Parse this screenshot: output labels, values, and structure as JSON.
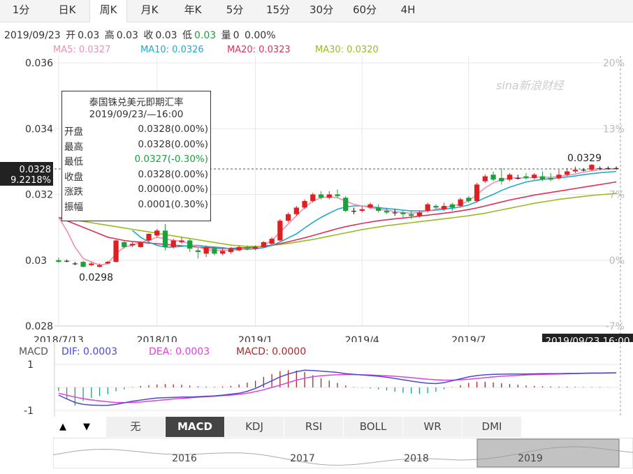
{
  "tabs": [
    "1分",
    "日K",
    "周K",
    "月K",
    "年K",
    "5分",
    "15分",
    "30分",
    "60分",
    "4H"
  ],
  "active_tab": "周K",
  "info": {
    "date": "2019/09/23",
    "open_label": "开",
    "open": "0.03",
    "high_label": "高",
    "high": "0.03",
    "close_label": "收",
    "close": "0.03",
    "low_label": "低",
    "low": "0.03",
    "vol_label": "量",
    "vol": "0",
    "pct": "0.00%"
  },
  "ma": {
    "ma5": "MA5: 0.0327",
    "ma10": "MA10: 0.0326",
    "ma20": "MA20: 0.0323",
    "ma30": "MA30: 0.0320"
  },
  "colors": {
    "up": "#e02020",
    "down": "#1aa33a",
    "ma5": "#f08fb0",
    "ma10": "#20aacc",
    "ma20": "#e0305a",
    "ma30": "#99bb22",
    "dif": "#4a4ad0",
    "dea": "#e040e0",
    "grid": "#e8e8e8"
  },
  "watermark": "sina新浪财经",
  "tooltip": {
    "title": "泰国铢兑美元即期汇率",
    "datetime": "2019/09/23/—16:00",
    "rows": [
      {
        "k": "开盘",
        "v": "0.0328(0.00%)"
      },
      {
        "k": "最高",
        "v": "0.0328(0.00%)"
      },
      {
        "k": "最低",
        "v": "0.0327(-0.30%)"
      },
      {
        "k": "收盘",
        "v": "0.0328(0.00%)"
      },
      {
        "k": "涨跌",
        "v": "0.0000(0.00%)"
      },
      {
        "k": "振幅",
        "v": "0.0001(0.30%)"
      }
    ]
  },
  "cursor": {
    "price": "0.0328",
    "pct": "9.2218%",
    "time": "2019/09/23 16:00"
  },
  "annotations": {
    "max": "0.0329",
    "min": "0.0298"
  },
  "macd_header": {
    "label": "MACD",
    "dif": "DIF: 0.0003",
    "dea": "DEA: 0.0003",
    "macd": "MACD: 0.0000"
  },
  "macd_ticks": [
    "1",
    "-1"
  ],
  "indicator_buttons": [
    "无",
    "MACD",
    "KDJ",
    "RSI",
    "BOLL",
    "WR",
    "DMI"
  ],
  "active_indicator": "MACD",
  "nav_buttons": {
    "up": "▲",
    "down": "▼"
  },
  "overview_years": [
    "2016",
    "2017",
    "2018",
    "2019"
  ],
  "chart_data": {
    "type": "candlestick",
    "ylim": [
      0.028,
      0.036
    ],
    "y_ticks": [
      "0.036",
      "0.034",
      "0.032",
      "0.03",
      "0.028"
    ],
    "pct_ticks": [
      "20%",
      "13%",
      "7%",
      "0%",
      "-7%"
    ],
    "x_tick_labels": [
      "2018/7/13",
      "2018/10",
      "2019/1",
      "2019/4",
      "2019/7"
    ],
    "x_tick_index": [
      0,
      12,
      24,
      37,
      50
    ],
    "candles": [
      [
        0.03,
        0.02995,
        0.03008,
        0.02992
      ],
      [
        0.02998,
        0.02998,
        0.03002,
        0.02994
      ],
      [
        0.0299,
        0.0299,
        0.02995,
        0.02985
      ],
      [
        0.02995,
        0.0298,
        0.02998,
        0.02978
      ],
      [
        0.02985,
        0.0299,
        0.02995,
        0.02982
      ],
      [
        0.0298,
        0.02985,
        0.0299,
        0.02978
      ],
      [
        0.0299,
        0.02995,
        0.02998,
        0.02988
      ],
      [
        0.02995,
        0.0306,
        0.03062,
        0.02993
      ],
      [
        0.03055,
        0.0304,
        0.0306,
        0.03035
      ],
      [
        0.03045,
        0.0305,
        0.03055,
        0.0304
      ],
      [
        0.0304,
        0.03055,
        0.03058,
        0.03038
      ],
      [
        0.0306,
        0.0308,
        0.03082,
        0.03058
      ],
      [
        0.03075,
        0.0309,
        0.03095,
        0.0307
      ],
      [
        0.0309,
        0.0304,
        0.0311,
        0.0303
      ],
      [
        0.0304,
        0.0306,
        0.03065,
        0.03035
      ],
      [
        0.03055,
        0.0306,
        0.0307,
        0.0305
      ],
      [
        0.0306,
        0.03035,
        0.03065,
        0.03025
      ],
      [
        0.0303,
        0.03025,
        0.0304,
        0.03005
      ],
      [
        0.0302,
        0.0304,
        0.03045,
        0.0301
      ],
      [
        0.03035,
        0.0302,
        0.03042,
        0.03015
      ],
      [
        0.0302,
        0.03028,
        0.03035,
        0.03015
      ],
      [
        0.03025,
        0.03035,
        0.0304,
        0.0302
      ],
      [
        0.0303,
        0.0304,
        0.03045,
        0.03028
      ],
      [
        0.0304,
        0.03035,
        0.03045,
        0.0303
      ],
      [
        0.03035,
        0.0304,
        0.03045,
        0.0303
      ],
      [
        0.0304,
        0.03055,
        0.03058,
        0.03038
      ],
      [
        0.0305,
        0.03065,
        0.0307,
        0.03045
      ],
      [
        0.0306,
        0.0312,
        0.03125,
        0.03058
      ],
      [
        0.0312,
        0.0314,
        0.03145,
        0.03115
      ],
      [
        0.0314,
        0.0316,
        0.03165,
        0.03135
      ],
      [
        0.0316,
        0.0318,
        0.03185,
        0.03155
      ],
      [
        0.0318,
        0.032,
        0.03205,
        0.03175
      ],
      [
        0.032,
        0.0319,
        0.0321,
        0.03185
      ],
      [
        0.0319,
        0.032,
        0.0321,
        0.03185
      ],
      [
        0.032,
        0.03195,
        0.03215,
        0.0319
      ],
      [
        0.0319,
        0.0315,
        0.03195,
        0.03145
      ],
      [
        0.0315,
        0.0315,
        0.0316,
        0.0314
      ],
      [
        0.0315,
        0.03155,
        0.03165,
        0.03145
      ],
      [
        0.0316,
        0.0317,
        0.03175,
        0.03155
      ],
      [
        0.0316,
        0.0315,
        0.0317,
        0.03145
      ],
      [
        0.0315,
        0.03145,
        0.0316,
        0.0314
      ],
      [
        0.03145,
        0.03145,
        0.03155,
        0.03135
      ],
      [
        0.03145,
        0.0314,
        0.0315,
        0.0313
      ],
      [
        0.0314,
        0.03135,
        0.0315,
        0.03125
      ],
      [
        0.03135,
        0.03145,
        0.0315,
        0.0313
      ],
      [
        0.0315,
        0.0317,
        0.03175,
        0.03145
      ],
      [
        0.03165,
        0.0316,
        0.0317,
        0.03155
      ],
      [
        0.03155,
        0.03165,
        0.03175,
        0.0315
      ],
      [
        0.0317,
        0.0316,
        0.03175,
        0.0315
      ],
      [
        0.03165,
        0.03185,
        0.0319,
        0.0316
      ],
      [
        0.0319,
        0.0318,
        0.03195,
        0.03175
      ],
      [
        0.0318,
        0.0323,
        0.03235,
        0.03175
      ],
      [
        0.0324,
        0.03255,
        0.0326,
        0.03235
      ],
      [
        0.0326,
        0.03245,
        0.0327,
        0.0324
      ],
      [
        0.0325,
        0.0324,
        0.0328,
        0.0323
      ],
      [
        0.03245,
        0.0326,
        0.03265,
        0.0324
      ],
      [
        0.0325,
        0.0325,
        0.0326,
        0.03245
      ],
      [
        0.03255,
        0.0325,
        0.03265,
        0.03245
      ],
      [
        0.0325,
        0.0326,
        0.03265,
        0.03245
      ],
      [
        0.03255,
        0.03245,
        0.0327,
        0.0324
      ],
      [
        0.0325,
        0.03245,
        0.03265,
        0.0324
      ],
      [
        0.0325,
        0.0326,
        0.03275,
        0.03245
      ],
      [
        0.0326,
        0.0327,
        0.0328,
        0.03255
      ],
      [
        0.0327,
        0.03275,
        0.03285,
        0.03265
      ],
      [
        0.03275,
        0.03275,
        0.0328,
        0.0327
      ],
      [
        0.03275,
        0.0329,
        0.03292,
        0.03272
      ],
      [
        0.0328,
        0.0328,
        0.03285,
        0.03275
      ],
      [
        0.0328,
        0.0328,
        0.03285,
        0.03275
      ],
      [
        0.0328,
        0.0328,
        0.03285,
        0.03275
      ]
    ],
    "ma5": [
      0.0313,
      0.0309,
      0.0304,
      0.03005,
      0.02995,
      0.02985,
      0.0299,
      0.0302,
      0.0304,
      0.03045,
      0.03055,
      0.0306,
      0.0307,
      0.03065,
      0.0306,
      0.03058,
      0.0305,
      0.0304,
      0.03032,
      0.0303,
      0.0303,
      0.0303,
      0.03032,
      0.03035,
      0.03038,
      0.03045,
      0.0306,
      0.03085,
      0.0311,
      0.03135,
      0.0316,
      0.0318,
      0.0319,
      0.03193,
      0.0319,
      0.0318,
      0.0317,
      0.03165,
      0.0316,
      0.03155,
      0.03152,
      0.03148,
      0.03145,
      0.03143,
      0.03145,
      0.0315,
      0.03155,
      0.0316,
      0.03165,
      0.0317,
      0.0318,
      0.032,
      0.0322,
      0.03235,
      0.03245,
      0.0325,
      0.0325,
      0.0325,
      0.03252,
      0.03253,
      0.03252,
      0.03255,
      0.03258,
      0.03262,
      0.03268,
      0.03272,
      0.03275,
      0.03277,
      0.03278
    ],
    "ma10": [
      null,
      null,
      null,
      null,
      null,
      null,
      null,
      null,
      null,
      0.0309,
      0.0307,
      0.03055,
      0.03045,
      0.0304,
      0.0304,
      0.03042,
      0.03045,
      0.03045,
      0.03042,
      0.0304,
      0.03038,
      0.03035,
      0.03033,
      0.03033,
      0.03035,
      0.03038,
      0.03045,
      0.03055,
      0.03068,
      0.0308,
      0.03098,
      0.03115,
      0.0313,
      0.03143,
      0.03155,
      0.03162,
      0.03165,
      0.03165,
      0.03163,
      0.0316,
      0.03157,
      0.03155,
      0.03152,
      0.0315,
      0.0315,
      0.0315,
      0.03152,
      0.03155,
      0.03158,
      0.03162,
      0.03168,
      0.03178,
      0.0319,
      0.032,
      0.03212,
      0.03222,
      0.0323,
      0.03238,
      0.03242,
      0.03246,
      0.03248,
      0.0325,
      0.03253,
      0.03256,
      0.0326,
      0.03263,
      0.03266,
      0.03268,
      0.0327
    ],
    "ma20": [
      0.0313,
      0.0312,
      0.0311,
      0.031,
      0.0309,
      0.0308,
      0.0307,
      0.03065,
      0.0306,
      0.03057,
      0.03055,
      0.03052,
      0.0305,
      0.03048,
      0.03046,
      0.03044,
      0.03042,
      0.0304,
      0.03038,
      0.03037,
      0.03036,
      0.03036,
      0.03037,
      0.03038,
      0.0304,
      0.03042,
      0.03046,
      0.0305,
      0.03056,
      0.03062,
      0.03068,
      0.03075,
      0.03082,
      0.03089,
      0.03096,
      0.03102,
      0.03107,
      0.03112,
      0.03116,
      0.0312,
      0.03123,
      0.03126,
      0.03128,
      0.03131,
      0.03134,
      0.03137,
      0.0314,
      0.03143,
      0.03146,
      0.0315,
      0.03154,
      0.03159,
      0.03165,
      0.03171,
      0.03177,
      0.03183,
      0.03188,
      0.03193,
      0.03198,
      0.03202,
      0.03206,
      0.0321,
      0.03214,
      0.03218,
      0.03222,
      0.03226,
      0.0323,
      0.03234,
      0.03238
    ],
    "ma30": [
      0.0313,
      0.03126,
      0.03122,
      0.03118,
      0.03114,
      0.0311,
      0.03106,
      0.03102,
      0.03098,
      0.03094,
      0.0309,
      0.03086,
      0.03082,
      0.03078,
      0.03074,
      0.0307,
      0.03066,
      0.03062,
      0.03058,
      0.03054,
      0.0305,
      0.03046,
      0.03044,
      0.03042,
      0.03042,
      0.03043,
      0.03045,
      0.03048,
      0.03051,
      0.03055,
      0.03059,
      0.03063,
      0.03068,
      0.03073,
      0.03078,
      0.03083,
      0.03088,
      0.03093,
      0.03097,
      0.03101,
      0.03105,
      0.03108,
      0.03111,
      0.03114,
      0.03117,
      0.0312,
      0.03123,
      0.03126,
      0.03129,
      0.03132,
      0.03135,
      0.03139,
      0.03143,
      0.03148,
      0.03153,
      0.03158,
      0.03163,
      0.03168,
      0.03173,
      0.03177,
      0.03181,
      0.03185,
      0.03188,
      0.03191,
      0.03194,
      0.03197,
      0.03199,
      0.03201,
      0.03203
    ],
    "macd_ylim": [
      -1.2,
      1.2
    ],
    "dif": [
      -0.4,
      -0.6,
      -0.78,
      -0.88,
      -0.92,
      -0.93,
      -0.93,
      -0.88,
      -0.8,
      -0.72,
      -0.66,
      -0.6,
      -0.55,
      -0.53,
      -0.52,
      -0.5,
      -0.5,
      -0.48,
      -0.46,
      -0.44,
      -0.4,
      -0.35,
      -0.3,
      -0.2,
      -0.05,
      0.15,
      0.35,
      0.55,
      0.7,
      0.82,
      0.9,
      0.88,
      0.85,
      0.82,
      0.78,
      0.72,
      0.68,
      0.65,
      0.62,
      0.58,
      0.53,
      0.47,
      0.4,
      0.33,
      0.27,
      0.22,
      0.2,
      0.25,
      0.35,
      0.45,
      0.55,
      0.62,
      0.66,
      0.68,
      0.69,
      0.7,
      0.7,
      0.7,
      0.71,
      0.72,
      0.72,
      0.72,
      0.73,
      0.73,
      0.74,
      0.75,
      0.75,
      0.76,
      0.76
    ],
    "dea": [
      -0.3,
      -0.4,
      -0.5,
      -0.58,
      -0.65,
      -0.7,
      -0.75,
      -0.78,
      -0.79,
      -0.78,
      -0.76,
      -0.72,
      -0.68,
      -0.64,
      -0.6,
      -0.57,
      -0.54,
      -0.51,
      -0.48,
      -0.46,
      -0.43,
      -0.4,
      -0.36,
      -0.3,
      -0.22,
      -0.12,
      0.0,
      0.12,
      0.25,
      0.38,
      0.48,
      0.56,
      0.61,
      0.64,
      0.66,
      0.67,
      0.67,
      0.66,
      0.65,
      0.63,
      0.61,
      0.58,
      0.55,
      0.51,
      0.47,
      0.43,
      0.4,
      0.38,
      0.38,
      0.4,
      0.43,
      0.47,
      0.51,
      0.55,
      0.58,
      0.61,
      0.63,
      0.65,
      0.67,
      0.68,
      0.69,
      0.7,
      0.71,
      0.72,
      0.73,
      0.74,
      0.74,
      0.75,
      0.76
    ],
    "macd": [
      -0.2,
      -0.6,
      -0.95,
      -0.7,
      -0.55,
      -0.45,
      -0.35,
      -0.2,
      -0.1,
      0.02,
      0.08,
      0.12,
      0.15,
      0.18,
      0.16,
      0.14,
      0.1,
      0.06,
      0.04,
      0.03,
      0.05,
      0.08,
      0.15,
      0.25,
      0.35,
      0.55,
      0.7,
      0.85,
      0.9,
      0.88,
      0.8,
      0.64,
      0.48,
      0.36,
      0.24,
      0.1,
      0.02,
      -0.02,
      -0.06,
      -0.1,
      -0.16,
      -0.22,
      -0.28,
      -0.32,
      -0.34,
      -0.3,
      -0.22,
      -0.1,
      0.02,
      0.12,
      0.24,
      0.3,
      0.3,
      0.26,
      0.22,
      0.18,
      0.14,
      0.1,
      0.08,
      0.06,
      0.05,
      0.04,
      0.04,
      0.03,
      0.02,
      0.02,
      0.02,
      0.01,
      0.0
    ]
  }
}
